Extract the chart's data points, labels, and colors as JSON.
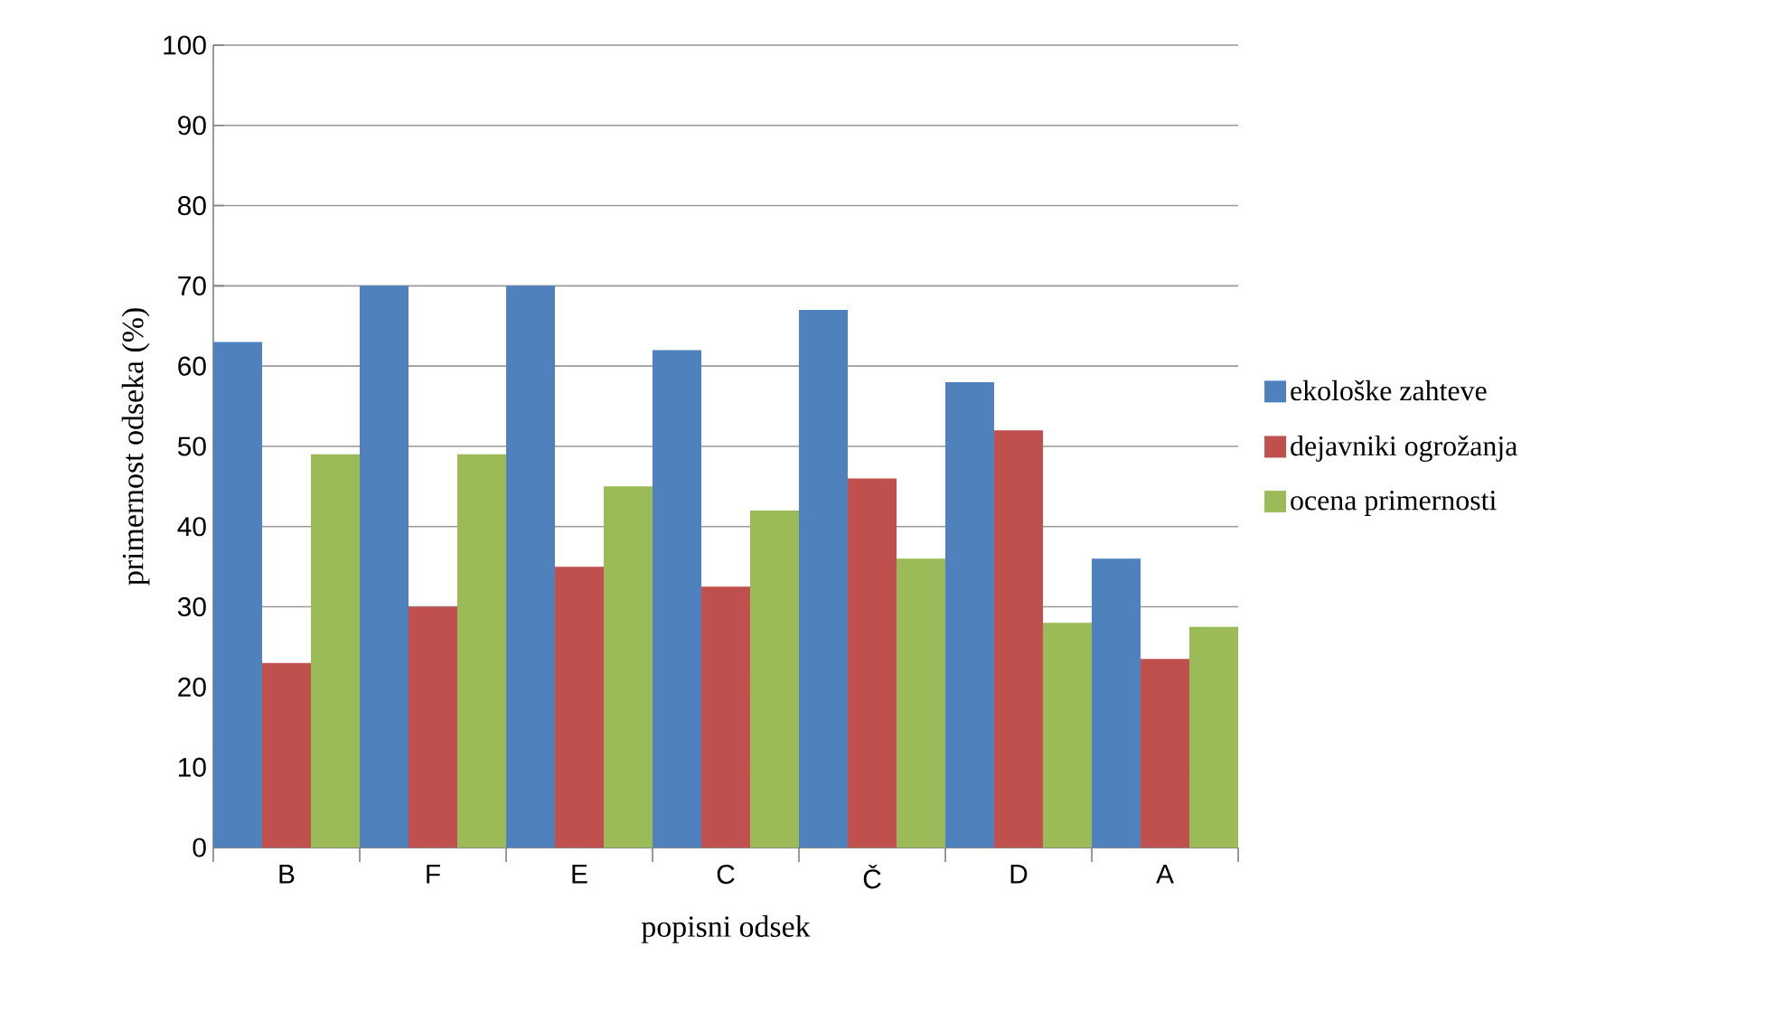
{
  "chart_data": {
    "type": "bar",
    "xlabel": "popisni odsek",
    "ylabel": "primernost odseka  (%)",
    "categories": [
      "B",
      "F",
      "E",
      "C",
      "Č",
      "D",
      "A"
    ],
    "series": [
      {
        "name": "ekološke zahteve",
        "color": "#4f81bd",
        "values": [
          63,
          70,
          70,
          62,
          67,
          58,
          36
        ]
      },
      {
        "name": "dejavniki ogrožanja",
        "color": "#c0504d",
        "values": [
          23,
          30,
          35,
          32.5,
          46,
          52,
          23.5
        ]
      },
      {
        "name": "ocena primernosti",
        "color": "#9bbb59",
        "values": [
          49,
          49,
          45,
          42,
          36,
          28,
          27.5
        ]
      }
    ],
    "ylim": [
      0,
      100
    ],
    "yticks": [
      0,
      10,
      20,
      30,
      40,
      50,
      60,
      70,
      80,
      90,
      100
    ],
    "grid": "y",
    "legend": "right"
  }
}
